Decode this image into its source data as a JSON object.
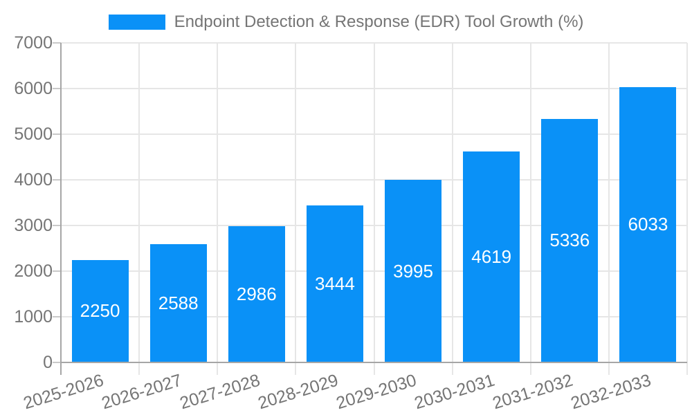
{
  "chart_data": {
    "type": "bar",
    "title": "Endpoint Detection & Response (EDR) Tool Growth (%)",
    "categories": [
      "2025-2026",
      "2026-2027",
      "2027-2028",
      "2028-2029",
      "2029-2030",
      "2030-2031",
      "2031-2032",
      "2032-2033"
    ],
    "values": [
      2250,
      2588,
      2986,
      3444,
      3995,
      4619,
      5336,
      6033
    ],
    "xlabel": "",
    "ylabel": "",
    "ylim": [
      0,
      7000
    ],
    "ytick_step": 1000,
    "ytick_labels": [
      "0",
      "1000",
      "2000",
      "3000",
      "4000",
      "5000",
      "6000",
      "7000"
    ],
    "grid": "both",
    "legend_position": "top-center",
    "value_labels": "inside-center",
    "x_label_rotation_deg": -17
  },
  "colors": {
    "bar": "#0A91F7",
    "axis_text": "#757575",
    "grid": "#E6E6E6",
    "axis_line": "#A6A6A6",
    "tick": "#C9C9C9",
    "value_label": "#FFFFFF",
    "background": "#FFFFFF"
  }
}
